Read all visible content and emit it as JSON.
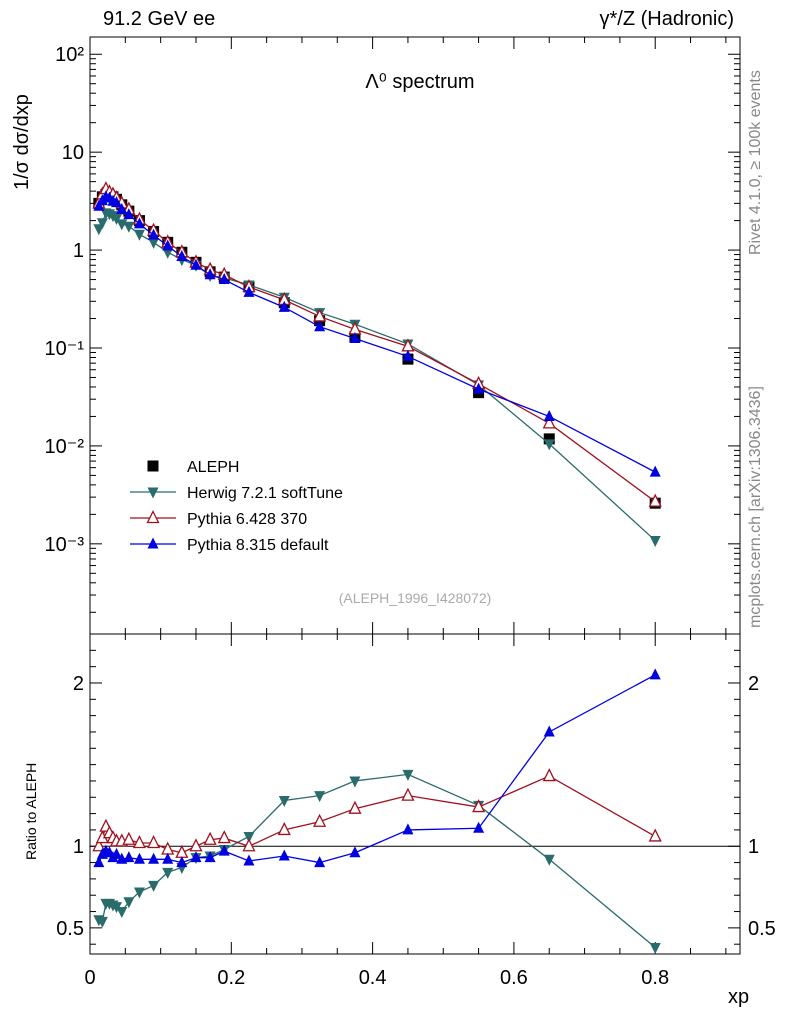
{
  "header": {
    "left": "91.2 GeV ee",
    "right": "γ*/Z (Hadronic)"
  },
  "side_labels": {
    "rivet": "Rivet 4.1.0, ≥ 100k events",
    "mcplots": "mcplots.cern.ch [arXiv:1306.3436]"
  },
  "chart_data": [
    {
      "type": "line",
      "scale": "log",
      "title": "Λ⁰ spectrum",
      "ylabel": "1/σ  dσ/dxp",
      "xlabel": "xp",
      "xlim": [
        0,
        0.92
      ],
      "ylim": [
        0.00012,
        150
      ],
      "y_tick_labels": [
        "10⁻³",
        "10⁻²",
        "10⁻¹",
        "1",
        "10",
        "10²"
      ],
      "watermark": "(ALEPH_1996_I428072)",
      "legend_position": "lower-left",
      "x": [
        0.0125,
        0.0175,
        0.0225,
        0.0275,
        0.0325,
        0.0375,
        0.045,
        0.055,
        0.07,
        0.09,
        0.11,
        0.13,
        0.15,
        0.17,
        0.19,
        0.225,
        0.275,
        0.325,
        0.375,
        0.45,
        0.55,
        0.65,
        0.8
      ],
      "series": [
        {
          "name": "ALEPH",
          "marker": "square",
          "color": "#000000",
          "values": [
            3.0,
            3.5,
            3.7,
            3.6,
            3.5,
            3.3,
            2.9,
            2.5,
            2.0,
            1.55,
            1.2,
            0.95,
            0.75,
            0.6,
            0.53,
            0.42,
            0.29,
            0.19,
            0.13,
            0.077,
            0.035,
            0.0118,
            0.0026
          ]
        },
        {
          "name": "Herwig 7.2.1 softTune",
          "marker": "triangle-down",
          "color": "#2a6b6b",
          "values": [
            1.65,
            1.9,
            2.4,
            2.35,
            2.25,
            2.1,
            1.85,
            1.75,
            1.45,
            1.2,
            0.95,
            0.8,
            0.7,
            0.55,
            0.52,
            0.44,
            0.33,
            0.23,
            0.175,
            0.11,
            0.042,
            0.0105,
            0.00108
          ]
        },
        {
          "name": "Pythia 6.428 370",
          "marker": "triangle-open",
          "color": "#a0101e",
          "values": [
            3.0,
            3.7,
            4.2,
            3.9,
            3.7,
            3.4,
            3.0,
            2.6,
            2.05,
            1.58,
            1.2,
            0.95,
            0.75,
            0.63,
            0.56,
            0.42,
            0.31,
            0.21,
            0.155,
            0.104,
            0.043,
            0.017,
            0.0027
          ]
        },
        {
          "name": "Pythia 8.315 default",
          "marker": "triangle-up",
          "color": "#0000e0",
          "values": [
            2.8,
            3.2,
            3.5,
            3.4,
            3.15,
            3.05,
            2.6,
            2.3,
            1.85,
            1.42,
            1.1,
            0.86,
            0.7,
            0.56,
            0.5,
            0.37,
            0.26,
            0.165,
            0.125,
            0.082,
            0.038,
            0.02,
            0.0054
          ]
        }
      ]
    },
    {
      "type": "line",
      "title": "",
      "ylabel": "Ratio to ALEPH",
      "xlabel": "xp",
      "xlim": [
        0,
        0.92
      ],
      "ylim": [
        0.34,
        2.3
      ],
      "y_ticks": [
        0.5,
        1,
        2
      ],
      "y_tick_labels": [
        "0.5",
        "1",
        "2"
      ],
      "x_ticks": [
        0,
        0.2,
        0.4,
        0.6,
        0.8
      ],
      "x_tick_labels": [
        "0",
        "0.2",
        "0.4",
        "0.6",
        "0.8"
      ],
      "x": [
        0.0125,
        0.0175,
        0.0225,
        0.0275,
        0.0325,
        0.0375,
        0.045,
        0.055,
        0.07,
        0.09,
        0.11,
        0.13,
        0.15,
        0.17,
        0.19,
        0.225,
        0.275,
        0.325,
        0.375,
        0.45,
        0.55,
        0.65,
        0.8
      ],
      "series": [
        {
          "name": "Herwig 7.2.1 softTune",
          "marker": "triangle-down",
          "color": "#2a6b6b",
          "values": [
            0.55,
            0.54,
            0.65,
            0.65,
            0.64,
            0.63,
            0.6,
            0.66,
            0.72,
            0.76,
            0.84,
            0.87,
            0.93,
            0.94,
            0.98,
            1.06,
            1.28,
            1.31,
            1.4,
            1.44,
            1.25,
            0.92,
            0.38
          ]
        },
        {
          "name": "Pythia 6.428 370",
          "marker": "triangle-open",
          "color": "#a0101e",
          "values": [
            1.0,
            1.05,
            1.12,
            1.08,
            1.05,
            1.03,
            1.03,
            1.04,
            1.02,
            1.02,
            0.98,
            0.96,
            1.0,
            1.04,
            1.05,
            1.0,
            1.1,
            1.15,
            1.23,
            1.31,
            1.24,
            1.43,
            1.06
          ]
        },
        {
          "name": "Pythia 8.315 default",
          "marker": "triangle-up",
          "color": "#0000e0",
          "values": [
            0.9,
            0.95,
            0.97,
            0.96,
            0.93,
            0.95,
            0.92,
            0.93,
            0.92,
            0.92,
            0.92,
            0.9,
            0.93,
            0.93,
            0.97,
            0.91,
            0.94,
            0.9,
            0.96,
            1.1,
            1.11,
            1.7,
            2.05
          ]
        }
      ]
    }
  ]
}
